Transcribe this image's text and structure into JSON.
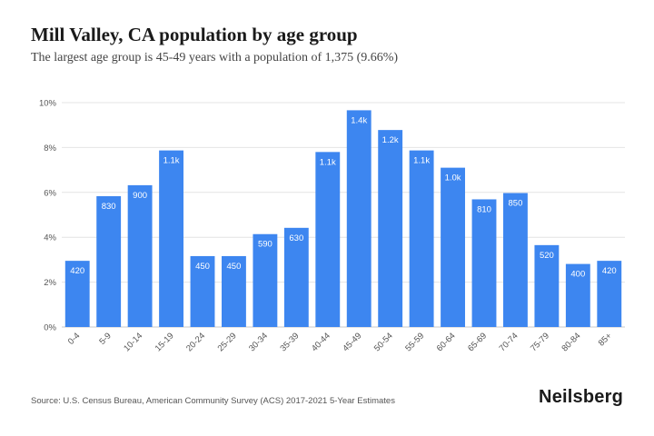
{
  "chart_data": {
    "type": "bar",
    "title": "Mill Valley, CA population by age group",
    "subtitle": "The largest age group is 45-49 years with a population of 1,375 (9.66%)",
    "categories": [
      "0-4",
      "5-9",
      "10-14",
      "15-19",
      "20-24",
      "25-29",
      "30-34",
      "35-39",
      "40-44",
      "45-49",
      "50-54",
      "55-59",
      "60-64",
      "65-69",
      "70-74",
      "75-79",
      "80-84",
      "85+"
    ],
    "values": [
      2.95,
      5.83,
      6.32,
      7.87,
      3.16,
      3.16,
      4.14,
      4.42,
      7.8,
      9.66,
      8.78,
      7.87,
      7.1,
      5.69,
      5.97,
      3.65,
      2.81,
      2.95
    ],
    "data_labels": [
      "420",
      "830",
      "900",
      "1.1k",
      "450",
      "450",
      "590",
      "630",
      "1.1k",
      "1.4k",
      "1.2k",
      "1.1k",
      "1.0k",
      "810",
      "850",
      "520",
      "400",
      "420"
    ],
    "y_ticks": [
      0,
      2,
      4,
      6,
      8,
      10
    ],
    "y_tick_labels": [
      "0%",
      "2%",
      "4%",
      "6%",
      "8%",
      "10%"
    ],
    "ylim": [
      0,
      10
    ],
    "xlabel": "",
    "ylabel": "",
    "grid": true,
    "bar_color": "#3d86f0",
    "label_color": "#ffffff"
  },
  "footer": {
    "source": "Source: U.S. Census Bureau, American Community Survey (ACS) 2017-2021 5-Year Estimates",
    "brand": "Neilsberg"
  }
}
